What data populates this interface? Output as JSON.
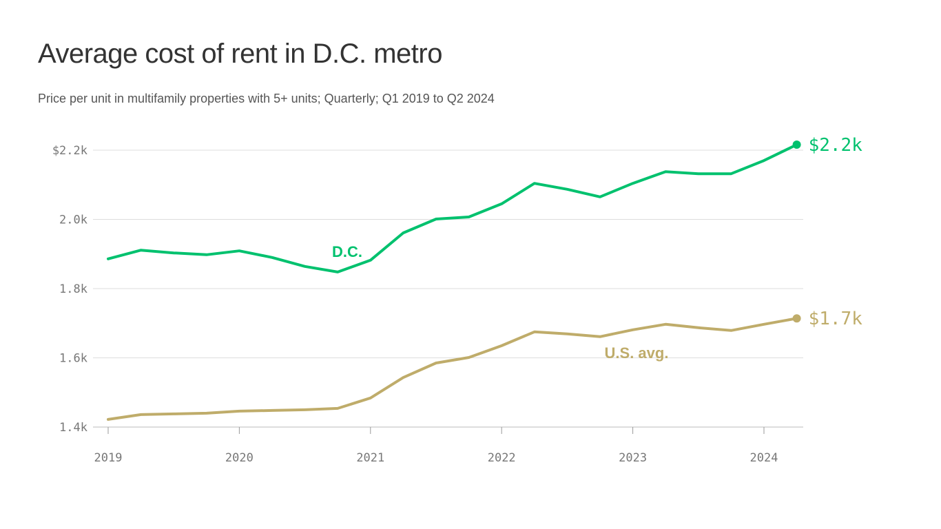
{
  "title": "Average cost of rent in D.C. metro",
  "subtitle": "Price per unit in multifamily properties with 5+ units; Quarterly; Q1 2019 to Q2 2024",
  "chart_data": {
    "type": "line",
    "title": "Average cost of rent in D.C. metro",
    "subtitle": "Price per unit in multifamily properties with 5+ units; Quarterly; Q1 2019 to Q2 2024",
    "x": [
      "2019 Q1",
      "2019 Q2",
      "2019 Q3",
      "2019 Q4",
      "2020 Q1",
      "2020 Q2",
      "2020 Q3",
      "2020 Q4",
      "2021 Q1",
      "2021 Q2",
      "2021 Q3",
      "2021 Q4",
      "2022 Q1",
      "2022 Q2",
      "2022 Q3",
      "2022 Q4",
      "2023 Q1",
      "2023 Q2",
      "2023 Q3",
      "2023 Q4",
      "2024 Q1",
      "2024 Q2"
    ],
    "xticks": [
      "2019",
      "2020",
      "2021",
      "2022",
      "2023",
      "2024"
    ],
    "yticks": [
      {
        "value": 1400,
        "label": "1.4k"
      },
      {
        "value": 1600,
        "label": "1.6k"
      },
      {
        "value": 1800,
        "label": "1.8k"
      },
      {
        "value": 2000,
        "label": "2.0k"
      },
      {
        "value": 2200,
        "label": "$2.2k"
      }
    ],
    "ylim": [
      1400,
      2200
    ],
    "grid": "horizontal",
    "series": [
      {
        "name": "D.C.",
        "color": "#00c16e",
        "end_label": "$2.2k",
        "values": [
          1886,
          1911,
          1903,
          1898,
          1909,
          1890,
          1864,
          1848,
          1882,
          1961,
          2001,
          2007,
          2045,
          2104,
          2087,
          2065,
          2104,
          2138,
          2132,
          2132,
          2170,
          2216
        ]
      },
      {
        "name": "U.S. avg.",
        "color": "#bfac6a",
        "end_label": "$1.7k",
        "values": [
          1422,
          1436,
          1438,
          1440,
          1446,
          1448,
          1450,
          1454,
          1484,
          1543,
          1585,
          1601,
          1635,
          1675,
          1669,
          1661,
          1681,
          1697,
          1687,
          1679,
          1697,
          1714
        ]
      }
    ]
  }
}
